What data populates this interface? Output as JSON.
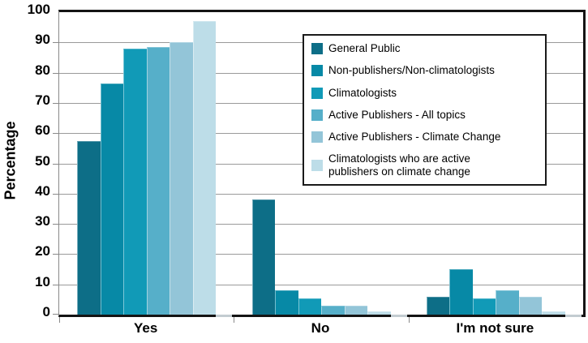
{
  "chart_data": {
    "type": "bar",
    "title": "",
    "xlabel": "",
    "ylabel": "Percentage",
    "categories": [
      "Yes",
      "No",
      "I'm not sure"
    ],
    "series": [
      {
        "name": "General Public",
        "color": "#0d6e87",
        "values": [
          57.5,
          38,
          6
        ]
      },
      {
        "name": "Non-publishers/Non-climatologists",
        "color": "#0789a6",
        "values": [
          76.5,
          8,
          15
        ]
      },
      {
        "name": "Climatologists",
        "color": "#119ab7",
        "values": [
          88,
          5.5,
          5.5
        ]
      },
      {
        "name": "Active Publishers - All topics",
        "color": "#56afc9",
        "values": [
          88.5,
          3,
          8
        ]
      },
      {
        "name": "Active Publishers - Climate Change",
        "color": "#93c5d8",
        "values": [
          90,
          3,
          6
        ]
      },
      {
        "name": "Climatologists who are active publishers on climate change",
        "color": "#bddde8",
        "values": [
          97,
          1,
          1
        ]
      }
    ],
    "ylim": [
      0,
      100
    ],
    "yticks": [
      0,
      10,
      20,
      30,
      40,
      50,
      60,
      70,
      80,
      90,
      100
    ],
    "grid": true,
    "legend_position": "upper-right",
    "colors": {
      "gridline": "#9a9a9a",
      "axis_frame": "#141414",
      "axis_left": "#8a8a8a",
      "tick": "#8a8a8a",
      "text": "#000000",
      "background": "#ffffff",
      "group_shadow": "#c3ccd1"
    }
  }
}
